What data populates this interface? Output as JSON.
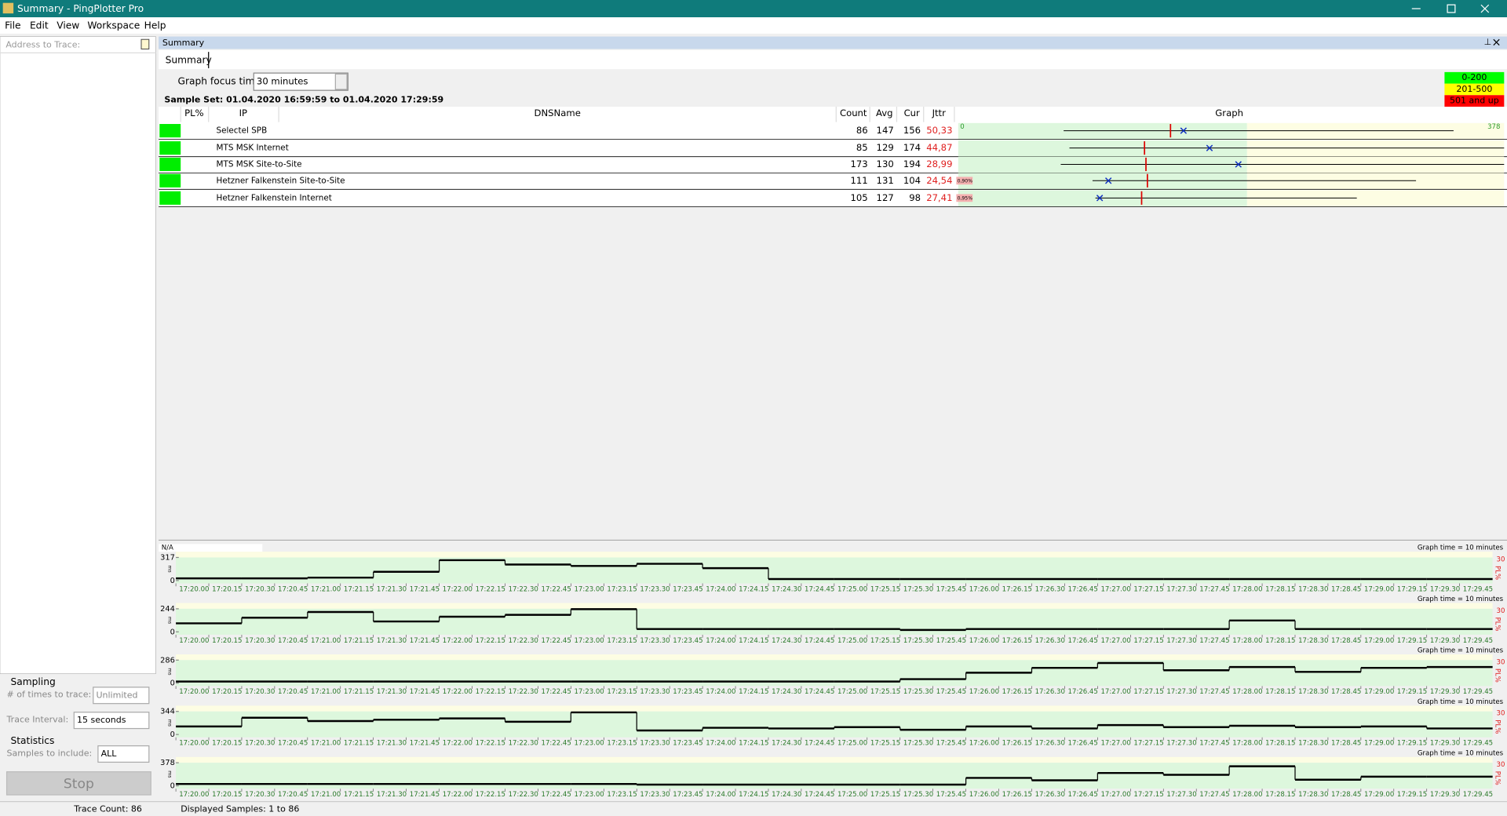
{
  "window": {
    "title": "Summary - PingPlotter Pro"
  },
  "menu": [
    "File",
    "Edit",
    "View",
    "Workspace",
    "Help"
  ],
  "left": {
    "address_placeholder": "Address to Trace:",
    "sampling": {
      "title": "Sampling",
      "times_label": "# of times to trace:",
      "times_value": "Unlimited",
      "interval_label": "Trace Interval:",
      "interval_value": "15 seconds"
    },
    "statistics": {
      "title": "Statistics",
      "samples_label": "Samples to include:",
      "samples_value": "ALL"
    },
    "stop": "Stop"
  },
  "summary": {
    "panel_title": "Summary",
    "tab": "Summary",
    "focus_label": "Graph focus time:",
    "focus_value": "30 minutes",
    "sample_set": "Sample Set: 01.04.2020 16:59:59 to 01.04.2020 17:29:59",
    "legend": [
      {
        "label": "0-200",
        "color": "#00ff00"
      },
      {
        "label": "201-500",
        "color": "#ffff00"
      },
      {
        "label": "501 and up",
        "color": "#ff0000"
      }
    ],
    "columns": [
      "PL%",
      "IP",
      "DNSName",
      "Count",
      "Avg",
      "Cur",
      "Jttr",
      "Graph"
    ],
    "graph_scale": {
      "min": 0,
      "max": 378,
      "threshold": 200
    },
    "rows": [
      {
        "name": "Selectel SPB",
        "count": 86,
        "avg": 147,
        "cur": 156,
        "jitter": "50,33",
        "min": 73,
        "max": 343
      },
      {
        "name": "MTS MSK Internet",
        "count": 85,
        "avg": 129,
        "cur": 174,
        "jitter": "44,87",
        "min": 77,
        "max": 378
      },
      {
        "name": "MTS MSK Site-to-Site",
        "count": 173,
        "avg": 130,
        "cur": 194,
        "jitter": "28,99",
        "min": 71,
        "max": 378
      },
      {
        "name": "Hetzner Falkenstein Site-to-Site",
        "count": 111,
        "avg": 131,
        "cur": 104,
        "jitter": "24,54",
        "pl": "0,90%",
        "min": 93,
        "max": 317
      },
      {
        "name": "Hetzner Falkenstein Internet",
        "count": 105,
        "avg": 127,
        "cur": 98,
        "jitter": "27,41",
        "pl": "0,95%",
        "min": 95,
        "max": 276
      }
    ]
  },
  "timegraphs": {
    "na": "N/A",
    "graph_time": "Graph time = 10 minutes",
    "pl_max": 30,
    "pl_label": "PL%",
    "unit": "ms",
    "ticks": [
      "17:20.00",
      "17:20.15",
      "17:20.30",
      "17:20.45",
      "17:21.00",
      "17:21.15",
      "17:21.30",
      "17:21.45",
      "17:22.00",
      "17:22.15",
      "17:22.30",
      "17:22.45",
      "17:23.00",
      "17:23.15",
      "17:23.30",
      "17:23.45",
      "17:24.00",
      "17:24.15",
      "17:24.30",
      "17:24.45",
      "17:25.00",
      "17:25.15",
      "17:25.30",
      "17:25.45",
      "17:26.00",
      "17:26.15",
      "17:26.30",
      "17:26.45",
      "17:27.00",
      "17:27.15",
      "17:27.30",
      "17:27.45",
      "17:28.00",
      "17:28.15",
      "17:28.30",
      "17:28.45",
      "17:29.00",
      "17:29.15",
      "17:29.30",
      "17:29.45"
    ],
    "panels": [
      {
        "ylim": [
          0,
          317
        ],
        "values": [
          30,
          30,
          40,
          120,
          280,
          220,
          200,
          230,
          170,
          20,
          20,
          20,
          20,
          20,
          20,
          20,
          20,
          20,
          20,
          20
        ]
      },
      {
        "ylim": [
          0,
          244
        ],
        "values": [
          90,
          150,
          210,
          110,
          160,
          180,
          240,
          30,
          30,
          30,
          30,
          20,
          30,
          30,
          30,
          30,
          120,
          30,
          30,
          30
        ]
      },
      {
        "ylim": [
          0,
          286
        ],
        "values": [
          20,
          20,
          20,
          20,
          20,
          20,
          20,
          20,
          20,
          20,
          20,
          50,
          130,
          190,
          250,
          160,
          200,
          140,
          190,
          200
        ]
      },
      {
        "ylim": [
          0,
          344
        ],
        "values": [
          120,
          250,
          200,
          220,
          240,
          190,
          330,
          60,
          100,
          90,
          110,
          70,
          120,
          90,
          140,
          110,
          130,
          110,
          120,
          90
        ]
      },
      {
        "ylim": [
          0,
          378
        ],
        "values": [
          30,
          30,
          30,
          30,
          30,
          30,
          30,
          20,
          20,
          20,
          20,
          20,
          130,
          90,
          210,
          180,
          320,
          100,
          150,
          150
        ]
      }
    ]
  },
  "status": {
    "trace_count": "Trace Count: 86",
    "displayed": "Displayed Samples: 1 to 86"
  }
}
